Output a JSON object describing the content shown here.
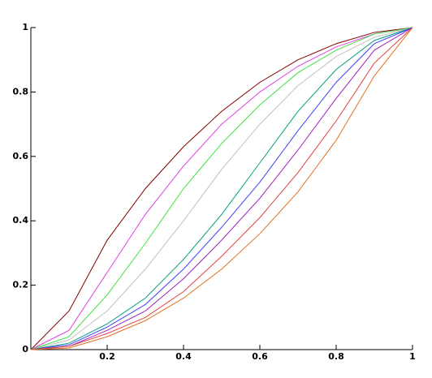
{
  "chart_data": {
    "type": "line",
    "x": [
      0,
      0.1,
      0.2,
      0.3,
      0.4,
      0.5,
      0.6,
      0.7,
      0.8,
      0.9,
      1
    ],
    "series": [
      {
        "color": "#800000",
        "values": [
          0,
          0.12,
          0.34,
          0.5,
          0.63,
          0.74,
          0.83,
          0.9,
          0.95,
          0.985,
          1
        ]
      },
      {
        "color": "#e040e0",
        "values": [
          0,
          0.06,
          0.24,
          0.42,
          0.57,
          0.7,
          0.8,
          0.88,
          0.94,
          0.98,
          1
        ]
      },
      {
        "color": "#40e040",
        "values": [
          0,
          0.04,
          0.17,
          0.33,
          0.5,
          0.64,
          0.76,
          0.86,
          0.93,
          0.98,
          1
        ]
      },
      {
        "color": "#c0c0c0",
        "values": [
          0,
          0.03,
          0.12,
          0.25,
          0.4,
          0.56,
          0.7,
          0.82,
          0.91,
          0.97,
          1
        ]
      },
      {
        "color": "#00a080",
        "values": [
          0,
          0.02,
          0.08,
          0.16,
          0.28,
          0.42,
          0.58,
          0.74,
          0.87,
          0.96,
          1
        ]
      },
      {
        "color": "#4040ff",
        "values": [
          0,
          0.015,
          0.07,
          0.14,
          0.25,
          0.38,
          0.52,
          0.68,
          0.83,
          0.95,
          1
        ]
      },
      {
        "color": "#a020c0",
        "values": [
          0,
          0.01,
          0.06,
          0.12,
          0.22,
          0.34,
          0.47,
          0.62,
          0.78,
          0.93,
          1
        ]
      },
      {
        "color": "#e04040",
        "values": [
          0,
          0.01,
          0.05,
          0.1,
          0.18,
          0.29,
          0.41,
          0.55,
          0.71,
          0.89,
          1
        ]
      },
      {
        "color": "#e07020",
        "values": [
          0,
          0.005,
          0.04,
          0.09,
          0.16,
          0.25,
          0.36,
          0.49,
          0.65,
          0.85,
          1
        ]
      }
    ],
    "xlim": [
      0,
      1
    ],
    "ylim": [
      0,
      1
    ],
    "xticks": [
      0.2,
      0.4,
      0.6,
      0.8,
      1
    ],
    "yticks": [
      0,
      0.2,
      0.4,
      0.6,
      0.8,
      1
    ]
  }
}
